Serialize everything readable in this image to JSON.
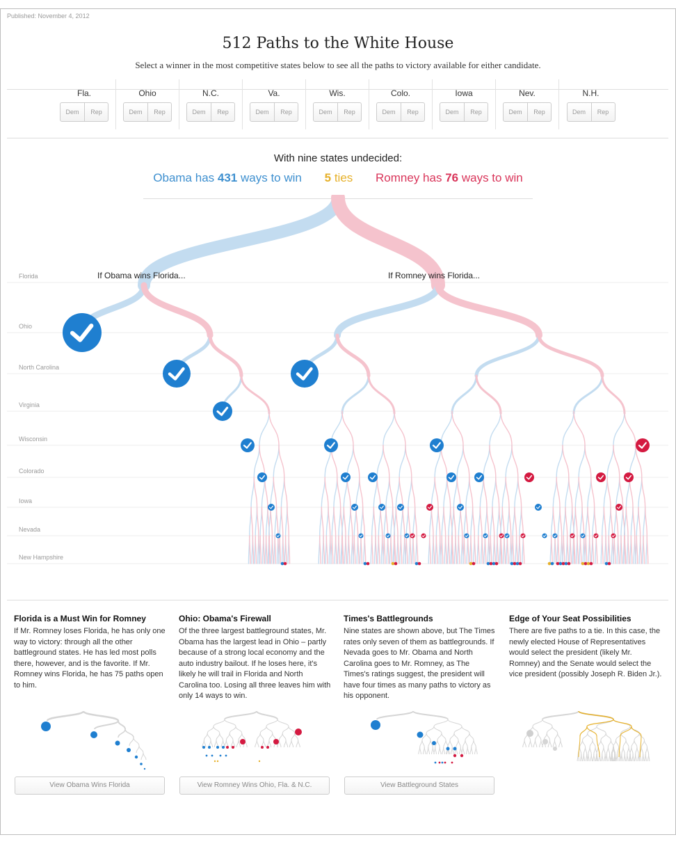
{
  "published": "Published: November 4, 2012",
  "title": "512 Paths to the White House",
  "subtitle": "Select a winner in the most competitive states below to see all the paths to victory available for either candidate.",
  "selector": {
    "dem_label": "Dem",
    "rep_label": "Rep",
    "states": [
      "Fla.",
      "Ohio",
      "N.C.",
      "Va.",
      "Wis.",
      "Colo.",
      "Iowa",
      "Nev.",
      "N.H."
    ]
  },
  "summary": {
    "headline": "With nine states undecided:",
    "obama_prefix": "Obama has",
    "obama_count": "431",
    "obama_suffix": "ways to win",
    "ties_count": "5",
    "ties_label": "ties",
    "romney_prefix": "Romney has",
    "romney_count": "76",
    "romney_suffix": "ways to win"
  },
  "tree": {
    "rows": [
      "Florida",
      "Ohio",
      "North Carolina",
      "Virginia",
      "Wisconsin",
      "Colorado",
      "Iowa",
      "Nevada",
      "New Hampshire"
    ],
    "obama_branch_label": "If Obama wins Florida...",
    "romney_branch_label": "If Romney wins Florida...",
    "colors": {
      "dem": "#1f7fd0",
      "rep": "#d41a41",
      "dem_light": "#c3dcf0",
      "rep_light": "#f5c3cd",
      "tie": "#e6b029"
    }
  },
  "cards": [
    {
      "title": "Florida is a Must Win for Romney",
      "body": "If Mr. Romney loses Florida, he has only one way to victory: through all the other battleground states. He has led most polls there, however, and is the favorite. If Mr. Romney wins Florida, he has 75 paths open to him.",
      "button": "View Obama Wins Florida"
    },
    {
      "title": "Ohio: Obama's Firewall",
      "body": "Of the three largest battleground states, Mr. Obama has the largest lead in Ohio – partly because of a strong local economy and the auto industry bailout. If he loses here, it's likely he will trail in Florida and North Carolina too. Losing all three leaves him with only 14 ways to win.",
      "button": "View Romney Wins Ohio, Fla. & N.C."
    },
    {
      "title": "Times's Battlegrounds",
      "body": "Nine states are shown above, but The Times rates only seven of them as battlegrounds. If Nevada goes to Mr. Obama and North Carolina goes to Mr. Romney, as The Times's ratings suggest, the president will have four times as many paths to victory as his opponent.",
      "button": "View Battleground States"
    },
    {
      "title": "Edge of Your Seat Possibilities",
      "body": "There are five paths to a tie. In this case, the newly elected House of Representatives would select the president (likely Mr. Romney) and the Senate would select the vice president (possibly Joseph R. Biden Jr.).",
      "button": null
    }
  ]
}
